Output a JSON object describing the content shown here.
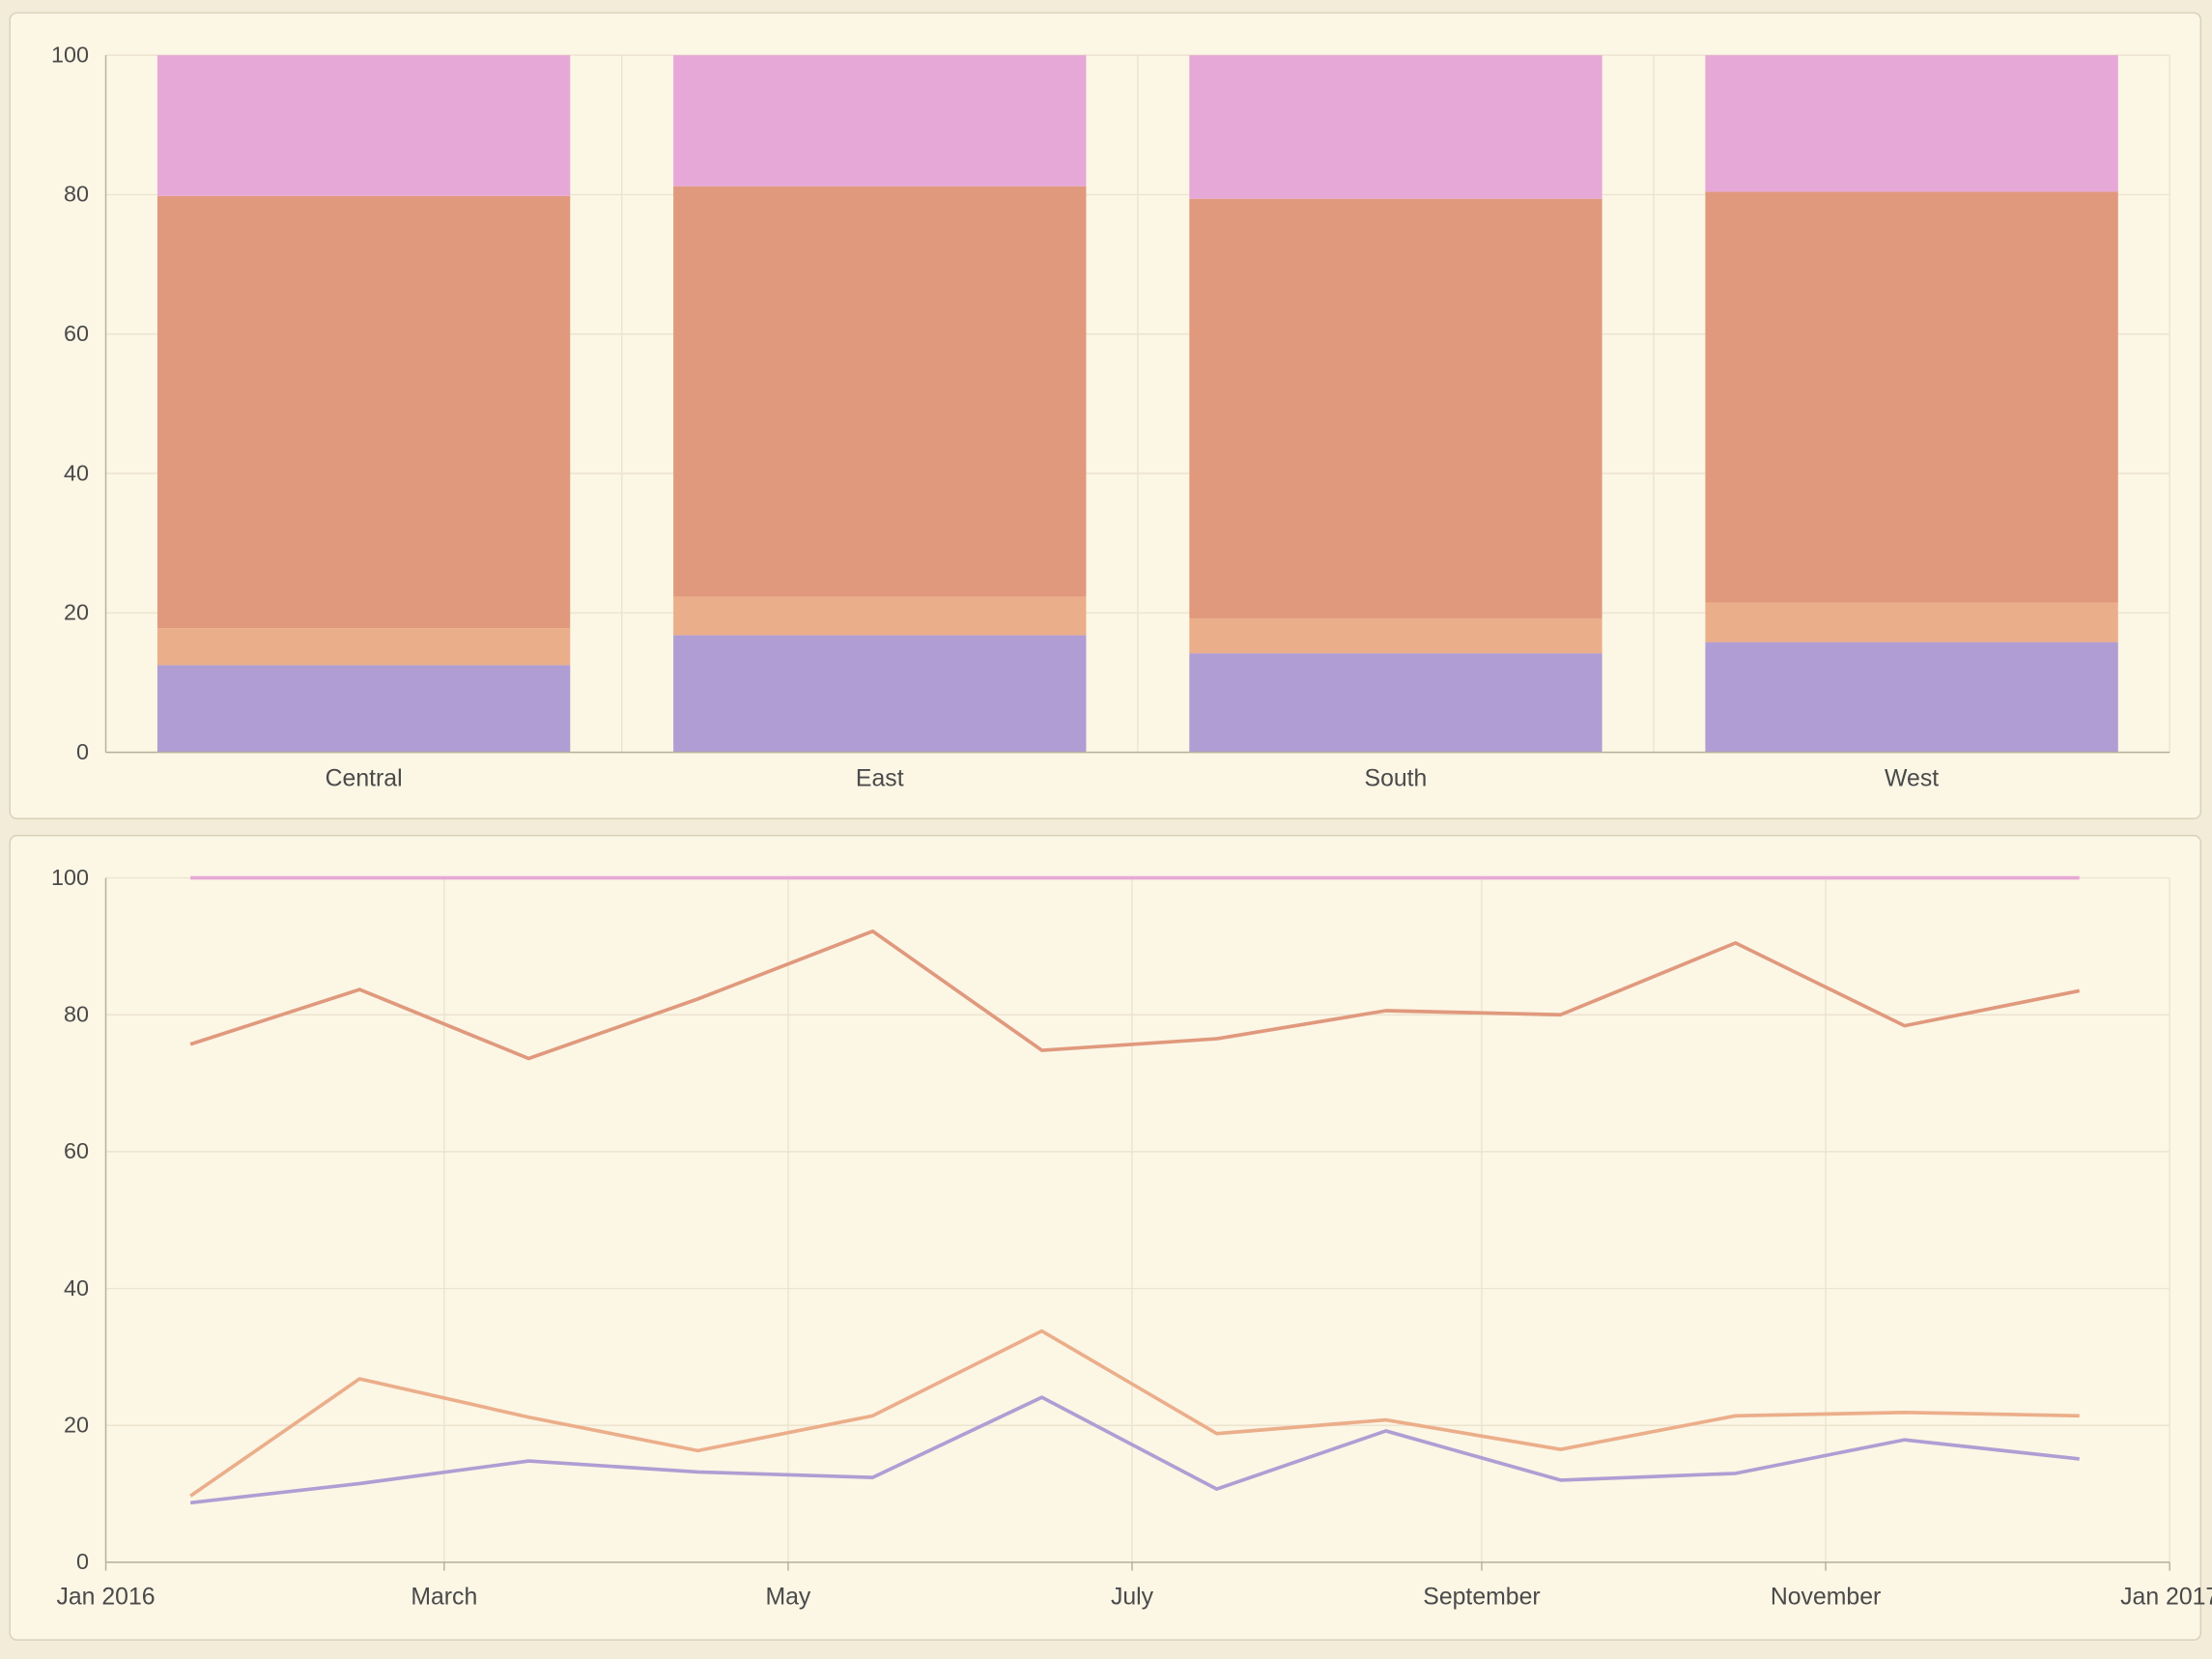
{
  "colors": {
    "background": "#f3ecd9",
    "panel": "#fcf6e5",
    "panel_border": "#d9d0b8",
    "grid": "#ece4cf",
    "axis": "#b9b09a",
    "series": [
      "#b09dd3",
      "#ebae8a",
      "#e0997d",
      "#e6a8d6"
    ]
  },
  "chart_data": [
    {
      "type": "bar",
      "stacked": true,
      "categories": [
        "Central",
        "East",
        "South",
        "West"
      ],
      "ylim": [
        0,
        100
      ],
      "yticks": [
        0,
        20,
        40,
        60,
        80,
        100
      ],
      "grid": true,
      "series": [
        {
          "values": [
            12.5,
            16.8,
            14.2,
            15.8
          ]
        },
        {
          "values": [
            5.3,
            5.5,
            5.0,
            5.7
          ]
        },
        {
          "values": [
            62.0,
            58.9,
            60.2,
            58.9
          ]
        },
        {
          "values": [
            20.2,
            18.8,
            20.6,
            19.6
          ]
        }
      ]
    },
    {
      "type": "line",
      "stacked": true,
      "x": [
        "2016-01-16",
        "2016-02-15",
        "2016-03-16",
        "2016-04-15",
        "2016-05-16",
        "2016-06-15",
        "2016-07-16",
        "2016-08-15",
        "2016-09-15",
        "2016-10-16",
        "2016-11-15",
        "2016-12-16"
      ],
      "xlim": [
        "2016-01-01",
        "2017-01-01"
      ],
      "xticks": [
        {
          "date": "2016-01-01",
          "label": "Jan 2016"
        },
        {
          "date": "2016-03-01",
          "label": "March"
        },
        {
          "date": "2016-05-01",
          "label": "May"
        },
        {
          "date": "2016-07-01",
          "label": "July"
        },
        {
          "date": "2016-09-01",
          "label": "September"
        },
        {
          "date": "2016-11-01",
          "label": "November"
        },
        {
          "date": "2017-01-01",
          "label": "Jan 2017"
        }
      ],
      "ylim": [
        0,
        100
      ],
      "yticks": [
        0,
        20,
        40,
        60,
        80,
        100
      ],
      "grid": true,
      "series": [
        {
          "values": [
            8.7,
            11.5,
            14.8,
            13.2,
            12.4,
            24.1,
            10.7,
            19.2,
            12.0,
            13.0,
            17.9,
            15.1
          ]
        },
        {
          "values": [
            9.7,
            26.8,
            21.2,
            16.3,
            21.4,
            33.8,
            18.8,
            20.8,
            16.5,
            21.4,
            21.9,
            21.4
          ]
        },
        {
          "values": [
            75.7,
            83.7,
            73.6,
            82.3,
            92.2,
            74.8,
            76.5,
            80.6,
            80.0,
            90.5,
            78.4,
            83.5
          ]
        },
        {
          "values": [
            100,
            100,
            100,
            100,
            100,
            100,
            100,
            100,
            100,
            100,
            100,
            100
          ]
        }
      ]
    }
  ]
}
